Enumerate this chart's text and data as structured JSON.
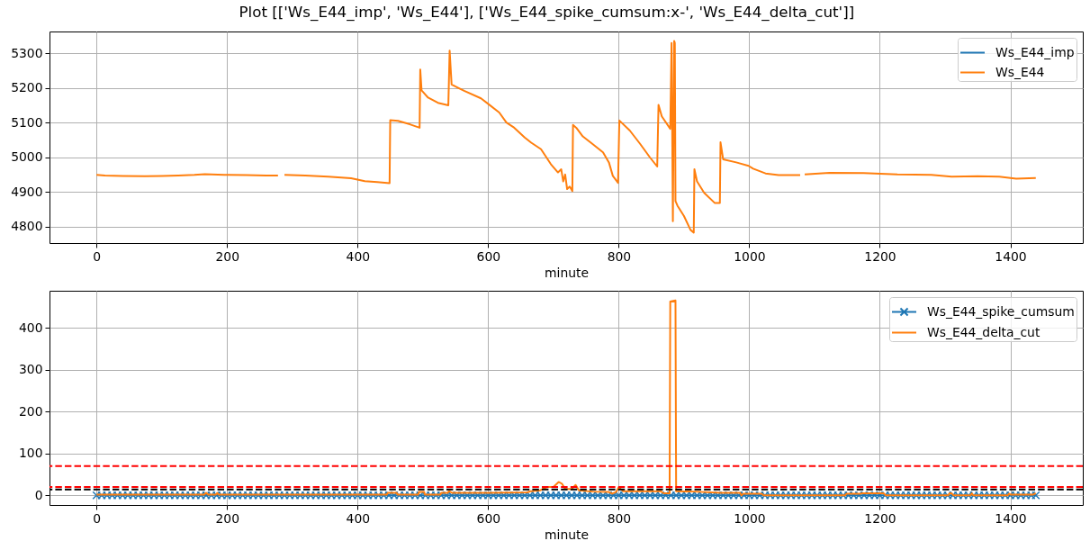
{
  "chart_data": [
    {
      "type": "line",
      "title": "Plot [['Ws_E44_imp', 'Ws_E44'], ['Ws_E44_spike_cumsum:x-', 'Ws_E44_delta_cut']]",
      "xlabel": "minute",
      "xlim": [
        -72,
        1511
      ],
      "xticks": [
        0,
        200,
        400,
        600,
        800,
        1000,
        1200,
        1400
      ],
      "ylim": [
        4752,
        5363
      ],
      "yticks": [
        4800,
        4900,
        5000,
        5100,
        5200,
        5300
      ],
      "grid": true,
      "legend": "top right",
      "x": [
        0,
        13,
        40,
        74,
        100,
        125,
        150,
        166,
        196,
        230,
        260,
        278,
        283,
        288,
        320,
        355,
        390,
        411,
        430,
        449,
        450,
        462,
        480,
        495,
        496,
        498,
        508,
        523,
        539,
        541,
        544,
        564,
        589,
        600,
        617,
        628,
        640,
        656,
        666,
        681,
        696,
        707,
        712,
        715,
        718,
        721,
        725,
        729,
        730,
        735,
        745,
        760,
        776,
        785,
        791,
        799,
        801,
        817,
        833,
        848,
        859,
        861,
        866,
        879,
        881,
        883,
        885,
        886,
        887,
        890,
        900,
        910,
        915,
        916,
        920,
        931,
        947,
        955,
        956,
        960,
        980,
        999,
        1006,
        1025,
        1045,
        1078,
        1081,
        1085,
        1123,
        1175,
        1227,
        1279,
        1310,
        1350,
        1383,
        1409,
        1439
      ],
      "series": [
        {
          "name": "Ws_E44_imp",
          "color": "#1f77b4",
          "values": [
            null,
            null,
            null,
            null,
            null,
            null,
            null,
            null,
            null,
            null,
            null,
            null,
            null,
            null,
            null,
            null,
            null,
            null,
            null,
            null,
            null,
            null,
            null,
            null,
            null,
            null,
            null,
            null,
            null,
            null,
            null,
            null,
            null,
            null,
            null,
            null,
            null,
            null,
            null,
            null,
            null,
            null,
            null,
            null,
            null,
            null,
            null,
            null,
            null,
            null,
            null,
            null,
            null,
            null,
            null,
            null,
            null,
            null,
            null,
            null,
            null,
            null,
            null,
            null,
            null,
            null,
            null,
            null,
            null,
            null,
            null,
            null,
            null,
            null,
            null,
            null,
            null,
            null,
            null,
            null,
            null,
            null,
            null,
            null,
            null,
            null,
            null,
            null,
            null,
            null,
            null,
            null,
            null,
            null,
            null,
            null,
            null
          ]
        },
        {
          "name": "Ws_E44",
          "color": "#ff7f0e",
          "values": [
            4949,
            4947,
            4946,
            4945,
            4946,
            4947,
            4949,
            4951,
            4949,
            4948,
            4947,
            4947,
            null,
            4949,
            4947,
            4944,
            4939,
            4931,
            4928,
            4925,
            5107,
            5105,
            5095,
            5085,
            5253,
            5193,
            5172,
            5157,
            5150,
            5308,
            5210,
            5191,
            5170,
            5154,
            5129,
            5100,
            5085,
            5057,
            5042,
            5023,
            4980,
            4956,
            4965,
            4930,
            4950,
            4908,
            4915,
            4902,
            5093,
            5085,
            5060,
            5038,
            5014,
            4985,
            4946,
            4926,
            5106,
            5077,
            5038,
            4999,
            4973,
            5151,
            5118,
            5082,
            5330,
            4815,
            5336,
            5330,
            4873,
            4860,
            4830,
            4790,
            4782,
            4965,
            4930,
            4897,
            4868,
            4868,
            5043,
            4994,
            4985,
            4975,
            4967,
            4953,
            4948,
            4948,
            null,
            4950,
            4955,
            4954,
            4950,
            4949,
            4944,
            4945,
            4944,
            4938,
            4940
          ]
        }
      ]
    },
    {
      "type": "line",
      "xlabel": "minute",
      "xlim": [
        -72,
        1511
      ],
      "xticks": [
        0,
        200,
        400,
        600,
        800,
        1000,
        1200,
        1400
      ],
      "ylim": [
        -23,
        489
      ],
      "yticks": [
        0,
        100,
        200,
        300,
        400
      ],
      "grid": true,
      "legend": "top right",
      "series": [
        {
          "name": "Ws_E44_spike_cumsum",
          "color": "#1f77b4",
          "marker": "cross",
          "x": [
            0,
            8,
            16,
            24,
            32,
            40,
            48,
            56,
            64,
            72,
            80,
            88,
            96,
            104,
            112,
            120,
            128,
            136,
            144,
            152,
            160,
            168,
            176,
            184,
            192,
            200,
            208,
            216,
            224,
            232,
            240,
            248,
            256,
            264,
            272,
            280,
            288,
            296,
            304,
            312,
            320,
            328,
            336,
            344,
            352,
            360,
            368,
            376,
            384,
            392,
            400,
            408,
            416,
            424,
            432,
            440,
            448,
            456,
            464,
            472,
            480,
            488,
            496,
            504,
            512,
            520,
            528,
            536,
            544,
            552,
            560,
            568,
            576,
            584,
            592,
            600,
            608,
            616,
            624,
            632,
            640,
            648,
            656,
            664,
            672,
            680,
            688,
            696,
            704,
            712,
            720,
            728,
            736,
            744,
            752,
            760,
            768,
            776,
            784,
            792,
            800,
            808,
            816,
            824,
            832,
            840,
            848,
            856,
            864,
            872,
            880,
            888,
            896,
            904,
            912,
            920,
            928,
            936,
            944,
            952,
            960,
            968,
            976,
            984,
            992,
            1000,
            1008,
            1016,
            1024,
            1032,
            1040,
            1048,
            1056,
            1064,
            1072,
            1080,
            1088,
            1096,
            1104,
            1112,
            1120,
            1128,
            1136,
            1144,
            1152,
            1160,
            1168,
            1176,
            1184,
            1192,
            1200,
            1208,
            1216,
            1224,
            1232,
            1240,
            1248,
            1256,
            1264,
            1272,
            1280,
            1288,
            1296,
            1304,
            1312,
            1320,
            1328,
            1336,
            1344,
            1352,
            1360,
            1368,
            1376,
            1384,
            1392,
            1400,
            1408,
            1416,
            1424,
            1432,
            1439
          ],
          "values": [
            0,
            0,
            0,
            0,
            0,
            0,
            0,
            0,
            0,
            0,
            0,
            0,
            0,
            0,
            0,
            0,
            0,
            0,
            0,
            0,
            0,
            0,
            0,
            0,
            0,
            0,
            0,
            0,
            0,
            0,
            0,
            0,
            0,
            0,
            0,
            0,
            0,
            0,
            0,
            0,
            0,
            0,
            0,
            0,
            0,
            0,
            0,
            0,
            0,
            0,
            0,
            0,
            0,
            0,
            0,
            0,
            0,
            0,
            0,
            0,
            0,
            0,
            0,
            0,
            0,
            0,
            0,
            0,
            0,
            0,
            0,
            0,
            0,
            0,
            0,
            0,
            0,
            0,
            0,
            0,
            0,
            0,
            0,
            0,
            0,
            0,
            0,
            0,
            0,
            0,
            0,
            0,
            0,
            0,
            0,
            0,
            0,
            0,
            0,
            0,
            0,
            0,
            0,
            0,
            0,
            0,
            0,
            0,
            0,
            0,
            0,
            0,
            0,
            0,
            0,
            0,
            0,
            0,
            0,
            0,
            0,
            0,
            0,
            0,
            0,
            0,
            0,
            0,
            0,
            0,
            0,
            0,
            0,
            0,
            0,
            0,
            0,
            0,
            0,
            0,
            0,
            0,
            0,
            0,
            0,
            0,
            0,
            0,
            0,
            0,
            0,
            0,
            0,
            0,
            0,
            0,
            0,
            0,
            0,
            0,
            0,
            0,
            0,
            0,
            0,
            0,
            0,
            0,
            0,
            0,
            0,
            0,
            0,
            0,
            0,
            0,
            0,
            0,
            0,
            0,
            0
          ]
        },
        {
          "name": "Ws_E44_delta_cut",
          "color": "#ff7f0e",
          "x": [
            0,
            165,
            168,
            171,
            183,
            185,
            187,
            445,
            446,
            460,
            461,
            493,
            494,
            502,
            503,
            527,
            528,
            538,
            540,
            545,
            600,
            660,
            665,
            680,
            690,
            700,
            708,
            713,
            718,
            728,
            734,
            739,
            760,
            785,
            790,
            796,
            800,
            807,
            864,
            869,
            878,
            879,
            887,
            888,
            916,
            957,
            986,
            988,
            991,
            1019,
            1022,
            1147,
            1149,
            1170,
            1173,
            1206,
            1209,
            1305,
            1307,
            1310,
            1313,
            1339,
            1341,
            1343,
            1396,
            1398,
            1400,
            1435,
            1439
          ],
          "values": [
            2,
            2,
            6,
            2,
            2,
            6,
            2,
            2,
            6,
            6,
            2,
            2,
            8,
            8,
            2,
            2,
            6,
            6,
            10,
            6,
            6,
            7,
            10,
            12,
            20,
            20,
            32,
            28,
            15,
            15,
            25,
            12,
            9,
            8,
            4,
            8,
            19,
            10,
            10,
            5,
            5,
            463,
            466,
            10,
            9,
            6,
            6,
            0,
            4,
            4,
            0,
            0,
            4,
            4,
            5,
            5,
            0,
            0,
            5,
            5,
            0,
            0,
            5,
            0,
            0,
            4,
            2,
            2,
            5
          ]
        }
      ],
      "ref_lines": [
        {
          "axis": "y",
          "value": 70,
          "color": "#ff0000",
          "line_style": "dashed"
        },
        {
          "axis": "y",
          "value": 20,
          "color": "#ff0000",
          "line_style": "dashed"
        },
        {
          "axis": "y",
          "value": 14,
          "color": "#000000",
          "line_style": "dashed"
        }
      ]
    }
  ]
}
